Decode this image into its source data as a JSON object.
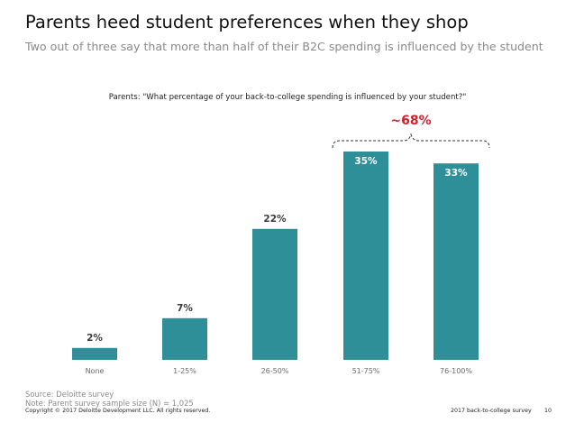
{
  "header": {
    "title": "Parents heed student preferences when they shop",
    "subtitle": "Two out of three say that more than half of their B2C spending is influenced by the student"
  },
  "colors": {
    "bar": "#2e8f99",
    "highlight": "#d0202a"
  },
  "chart_data": {
    "type": "bar",
    "title": "Parents: \"What percentage of your back-to-college spending is influenced by your student?\"",
    "categories": [
      "None",
      "1-25%",
      "26-50%",
      "51-75%",
      "76-100%"
    ],
    "values": [
      2,
      7,
      22,
      35,
      33
    ],
    "data_labels": [
      "2%",
      "7%",
      "22%",
      "35%",
      "33%"
    ],
    "ylim": [
      0,
      35
    ],
    "grid": false,
    "legend": "none",
    "annotation": {
      "text": "~68%",
      "spans": [
        "51-75%",
        "76-100%"
      ]
    }
  },
  "footer": {
    "source": "Source: Deloitte survey",
    "note": "Note: Parent survey sample size (N) = 1,025",
    "copyright": "Copyright © 2017 Deloitte Development LLC. All rights reserved.",
    "report": "2017 back-to-college survey",
    "page": "10"
  }
}
